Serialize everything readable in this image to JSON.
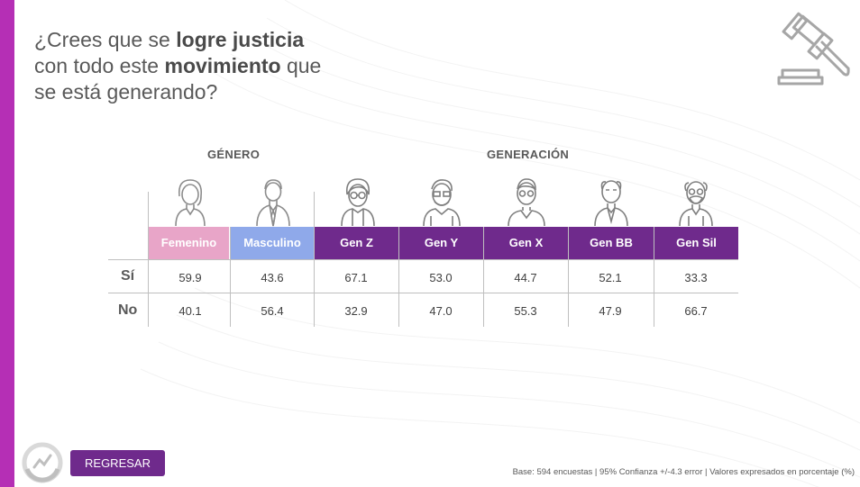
{
  "title": {
    "parts": [
      {
        "text": "¿Crees que se ",
        "bold": false
      },
      {
        "text": "logre",
        "bold": true
      },
      {
        "text": " ",
        "bold": false
      },
      {
        "text": "justicia",
        "bold": true
      },
      {
        "text": " con todo este ",
        "bold": false
      },
      {
        "text": "movimiento",
        "bold": true
      },
      {
        "text": " que se está generando?",
        "bold": false
      }
    ]
  },
  "groups": {
    "genero": "GÉNERO",
    "generacion": "GENERACIÓN"
  },
  "columns": [
    {
      "label": "Femenino",
      "color": "#e8a5c8",
      "icon": "woman-icon"
    },
    {
      "label": "Masculino",
      "color": "#8fa9ea",
      "icon": "man-icon"
    },
    {
      "label": "Gen Z",
      "color": "#6f2a8c",
      "icon": "gen-z-person-icon"
    },
    {
      "label": "Gen Y",
      "color": "#6f2a8c",
      "icon": "gen-y-person-icon"
    },
    {
      "label": "Gen X",
      "color": "#6f2a8c",
      "icon": "gen-x-person-icon"
    },
    {
      "label": "Gen BB",
      "color": "#6f2a8c",
      "icon": "gen-bb-person-icon"
    },
    {
      "label": "Gen Sil",
      "color": "#6f2a8c",
      "icon": "gen-sil-person-icon"
    }
  ],
  "rows": [
    {
      "label": "Sí",
      "values": [
        "59.9",
        "43.6",
        "67.1",
        "53.0",
        "44.7",
        "52.1",
        "33.3"
      ]
    },
    {
      "label": "No",
      "values": [
        "40.1",
        "56.4",
        "32.9",
        "47.0",
        "55.3",
        "47.9",
        "66.7"
      ]
    }
  ],
  "back_button": "REGRESAR",
  "footer": "Base: 594 encuestas | 95% Confianza +/-4.3 error | Valores expresados en porcentaje (%)",
  "colors": {
    "accent_bar": "#b52fb5",
    "generation_header": "#6f2a8c",
    "female_header": "#e8a5c8",
    "male_header": "#8fa9ea"
  }
}
